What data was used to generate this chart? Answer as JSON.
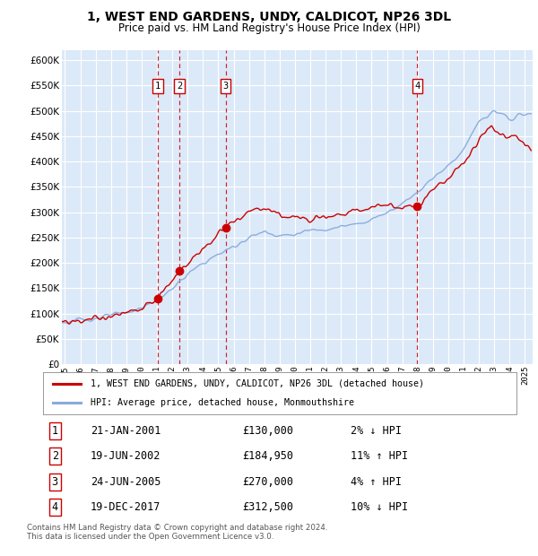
{
  "title": "1, WEST END GARDENS, UNDY, CALDICOT, NP26 3DL",
  "subtitle": "Price paid vs. HM Land Registry's House Price Index (HPI)",
  "ylabel_ticks": [
    "£0",
    "£50K",
    "£100K",
    "£150K",
    "£200K",
    "£250K",
    "£300K",
    "£350K",
    "£400K",
    "£450K",
    "£500K",
    "£550K",
    "£600K"
  ],
  "ytick_values": [
    0,
    50000,
    100000,
    150000,
    200000,
    250000,
    300000,
    350000,
    400000,
    450000,
    500000,
    550000,
    600000
  ],
  "ylim": [
    0,
    620000
  ],
  "xlim_start": 1994.8,
  "xlim_end": 2025.5,
  "plot_bg_color": "#dce9f8",
  "grid_color": "#ffffff",
  "sale_color": "#cc0000",
  "hpi_color": "#88aadd",
  "vline_color": "#cc0000",
  "label_box_color": "#cc0000",
  "sales": [
    {
      "date_num": 2001.06,
      "price": 130000,
      "label": "1"
    },
    {
      "date_num": 2002.47,
      "price": 184950,
      "label": "2"
    },
    {
      "date_num": 2005.48,
      "price": 270000,
      "label": "3"
    },
    {
      "date_num": 2017.97,
      "price": 312500,
      "label": "4"
    }
  ],
  "legend_sale_label": "1, WEST END GARDENS, UNDY, CALDICOT, NP26 3DL (detached house)",
  "legend_hpi_label": "HPI: Average price, detached house, Monmouthshire",
  "table_rows": [
    {
      "num": "1",
      "date": "21-JAN-2001",
      "price": "£130,000",
      "change": "2% ↓ HPI"
    },
    {
      "num": "2",
      "date": "19-JUN-2002",
      "price": "£184,950",
      "change": "11% ↑ HPI"
    },
    {
      "num": "3",
      "date": "24-JUN-2005",
      "price": "£270,000",
      "change": "4% ↑ HPI"
    },
    {
      "num": "4",
      "date": "19-DEC-2017",
      "price": "£312,500",
      "change": "10% ↓ HPI"
    }
  ],
  "footnote": "Contains HM Land Registry data © Crown copyright and database right 2024.\nThis data is licensed under the Open Government Licence v3.0.",
  "xtick_years": [
    1995,
    1996,
    1997,
    1998,
    1999,
    2000,
    2001,
    2002,
    2003,
    2004,
    2005,
    2006,
    2007,
    2008,
    2009,
    2010,
    2011,
    2012,
    2013,
    2014,
    2015,
    2016,
    2017,
    2018,
    2019,
    2020,
    2021,
    2022,
    2023,
    2024,
    2025
  ]
}
